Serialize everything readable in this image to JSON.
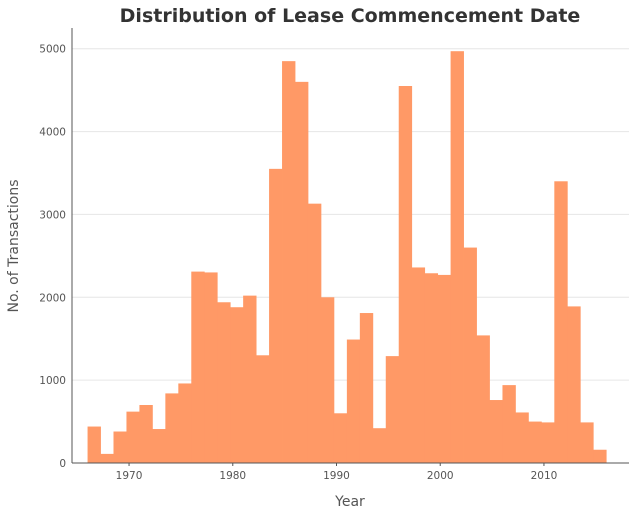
{
  "chart_data": {
    "type": "bar",
    "title": "Distribution of Lease Commencement Date",
    "xlabel": "Year",
    "ylabel": "No. of Transactions",
    "xlim": [
      1964.5,
      2018.2
    ],
    "ylim": [
      0,
      5250
    ],
    "x_ticks": [
      1970,
      1980,
      1990,
      2000,
      2010
    ],
    "y_ticks": [
      0,
      1000,
      2000,
      3000,
      4000,
      5000
    ],
    "grid": "horizontal",
    "color": "#ff9966",
    "bins": [
      {
        "start": 1966.0,
        "end": 1967.25,
        "value": 440
      },
      {
        "start": 1967.25,
        "end": 1968.5,
        "value": 110
      },
      {
        "start": 1968.5,
        "end": 1969.75,
        "value": 380
      },
      {
        "start": 1969.75,
        "end": 1971.0,
        "value": 620
      },
      {
        "start": 1971.0,
        "end": 1972.25,
        "value": 700
      },
      {
        "start": 1972.25,
        "end": 1973.5,
        "value": 410
      },
      {
        "start": 1973.5,
        "end": 1974.75,
        "value": 840
      },
      {
        "start": 1974.75,
        "end": 1976.0,
        "value": 960
      },
      {
        "start": 1976.0,
        "end": 1977.25,
        "value": 2310
      },
      {
        "start": 1977.25,
        "end": 1978.5,
        "value": 2300
      },
      {
        "start": 1978.5,
        "end": 1979.75,
        "value": 1940
      },
      {
        "start": 1979.75,
        "end": 1981.0,
        "value": 1880
      },
      {
        "start": 1981.0,
        "end": 1982.25,
        "value": 2020
      },
      {
        "start": 1982.25,
        "end": 1983.5,
        "value": 1300
      },
      {
        "start": 1983.5,
        "end": 1984.75,
        "value": 3550
      },
      {
        "start": 1984.75,
        "end": 1986.0,
        "value": 4850
      },
      {
        "start": 1986.0,
        "end": 1987.25,
        "value": 4600
      },
      {
        "start": 1987.25,
        "end": 1988.5,
        "value": 3130
      },
      {
        "start": 1988.5,
        "end": 1989.75,
        "value": 2000
      },
      {
        "start": 1989.75,
        "end": 1991.0,
        "value": 600
      },
      {
        "start": 1991.0,
        "end": 1992.25,
        "value": 1490
      },
      {
        "start": 1992.25,
        "end": 1993.5,
        "value": 1810
      },
      {
        "start": 1993.5,
        "end": 1994.75,
        "value": 420
      },
      {
        "start": 1994.75,
        "end": 1996.0,
        "value": 1290
      },
      {
        "start": 1996.0,
        "end": 1997.25,
        "value": 4550
      },
      {
        "start": 1997.25,
        "end": 1998.5,
        "value": 2360
      },
      {
        "start": 1998.5,
        "end": 1999.75,
        "value": 2290
      },
      {
        "start": 1999.75,
        "end": 2001.0,
        "value": 2270
      },
      {
        "start": 2001.0,
        "end": 2002.25,
        "value": 4970
      },
      {
        "start": 2002.25,
        "end": 2003.5,
        "value": 2600
      },
      {
        "start": 2003.5,
        "end": 2004.75,
        "value": 1540
      },
      {
        "start": 2004.75,
        "end": 2006.0,
        "value": 760
      },
      {
        "start": 2006.0,
        "end": 2007.25,
        "value": 940
      },
      {
        "start": 2007.25,
        "end": 2008.5,
        "value": 610
      },
      {
        "start": 2008.5,
        "end": 2009.75,
        "value": 500
      },
      {
        "start": 2009.75,
        "end": 2011.0,
        "value": 490
      },
      {
        "start": 2011.0,
        "end": 2012.25,
        "value": 3400
      },
      {
        "start": 2012.25,
        "end": 2013.5,
        "value": 1890
      },
      {
        "start": 2013.5,
        "end": 2014.75,
        "value": 490
      },
      {
        "start": 2014.75,
        "end": 2016.0,
        "value": 160
      }
    ]
  }
}
